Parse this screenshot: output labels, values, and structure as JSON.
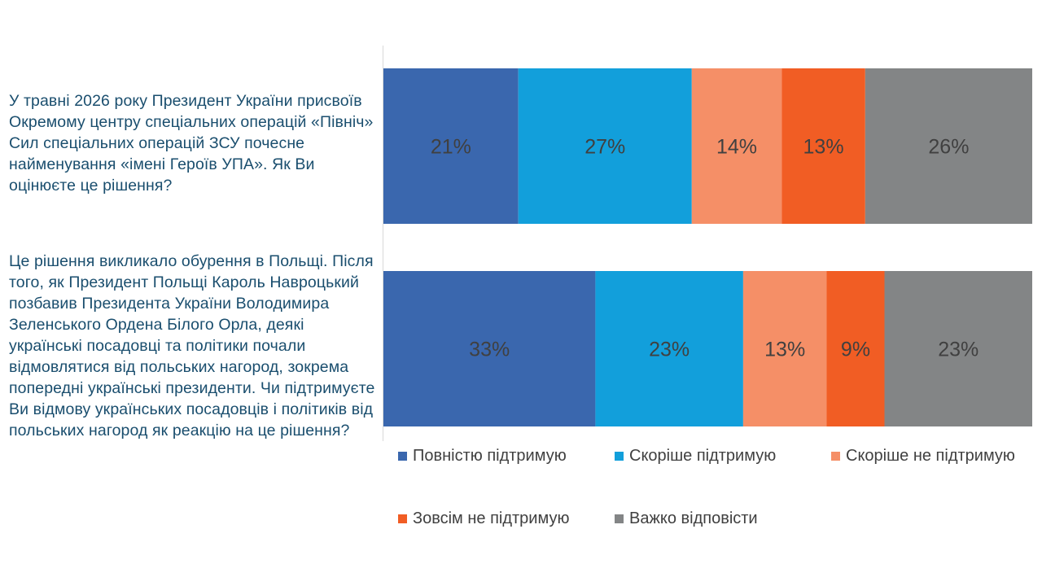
{
  "chart_data": {
    "type": "bar",
    "orientation": "horizontal",
    "stacked": true,
    "percent_stacked": true,
    "grid": false,
    "legend_position": "bottom",
    "categories": [
      "У травні 2026 року Президент України присвоїв Окремому центру спеціальних операцій «Північ» Сил спеціальних операцій ЗСУ почесне найменування «імені Героїв УПА». Як Ви оцінюєте це рішення?",
      "Це рішення викликало обурення в Польщі. Після того, як Президент Польщі Кароль Навроцький позбавив Президента України Володимира Зеленського Ордена Білого Орла, деякі українські посадовці та політики почали відмовлятися від польських нагород, зокрема попередні українські президенти. Чи підтримуєте Ви відмову українських посадовців і політиків від польських нагород як реакцію на це рішення?"
    ],
    "series": [
      {
        "name": "Повністю підтримую",
        "color": "#3a67ae",
        "values": [
          21,
          33
        ],
        "labels": [
          "21%",
          "33%"
        ]
      },
      {
        "name": "Скоріше підтримую",
        "color": "#129fdb",
        "values": [
          27,
          23
        ],
        "labels": [
          "27%",
          "23%"
        ]
      },
      {
        "name": "Скоріше не підтримую",
        "color": "#f58f67",
        "values": [
          14,
          13
        ],
        "labels": [
          "14%",
          "13%"
        ]
      },
      {
        "name": "Зовсім не підтримую",
        "color": "#f15d24",
        "values": [
          13,
          9
        ],
        "labels": [
          "13%",
          "9%"
        ]
      },
      {
        "name": "Важко відповісти",
        "color": "#838586",
        "values": [
          26,
          23
        ],
        "labels": [
          "26%",
          "23%"
        ]
      }
    ]
  },
  "colors": {
    "label_text": "#404040",
    "question_text": "#1a4e6e"
  }
}
